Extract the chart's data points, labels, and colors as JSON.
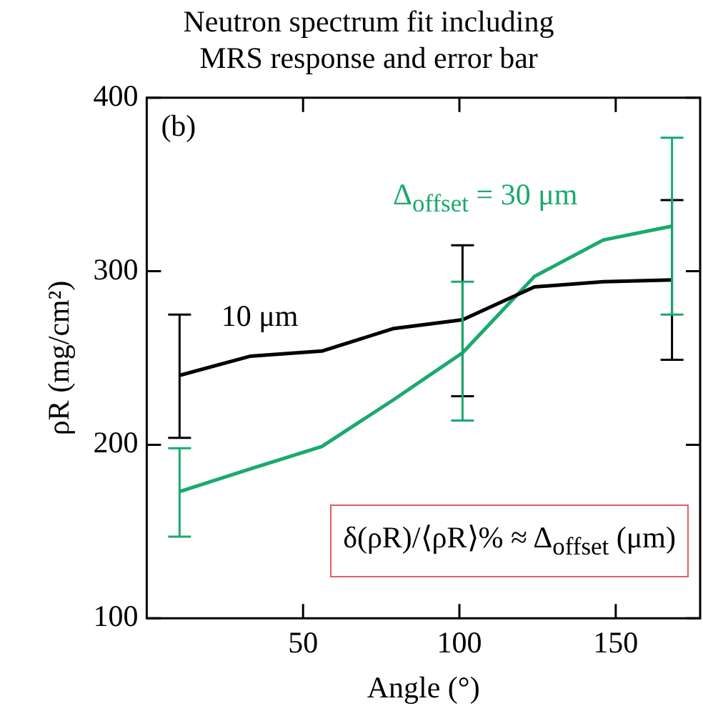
{
  "chart_data": {
    "type": "line",
    "title": "Neutron spectrum fit including\nMRS response and error bar",
    "xlabel": "Angle (°)",
    "ylabel": "ρR (mg/cm²)",
    "xlim": [
      0,
      177
    ],
    "xticks": [
      50,
      100,
      150
    ],
    "ylim": [
      100,
      400
    ],
    "yticks": [
      100,
      200,
      300,
      400
    ],
    "grid": false,
    "legend": false,
    "marker": "none",
    "line_style": "solid",
    "annotations": [
      "(b)",
      "δ(ρR)/⟨ρR⟩% ≈ Δ$_{offset}$ (μm)"
    ],
    "series": [
      {
        "name": "10 μm",
        "color": "#000000",
        "x": [
          10.5,
          33,
          56,
          79,
          101,
          124,
          146,
          168
        ],
        "values": [
          240,
          251,
          254,
          267,
          272,
          291,
          294,
          295
        ],
        "errors": [
          [
            204,
            275
          ],
          null,
          null,
          null,
          [
            228,
            315
          ],
          null,
          null,
          [
            249,
            341
          ]
        ]
      },
      {
        "name": "Δ$_{offset}$ = 30 μm",
        "color": "#1aaa6e",
        "x": [
          10.5,
          33,
          56,
          79,
          101,
          124,
          146,
          168
        ],
        "values": [
          173,
          186,
          199,
          226,
          253,
          297,
          318,
          326
        ],
        "errors": [
          [
            147,
            198
          ],
          null,
          null,
          null,
          [
            214,
            294
          ],
          null,
          null,
          [
            275,
            377
          ]
        ]
      }
    ]
  }
}
